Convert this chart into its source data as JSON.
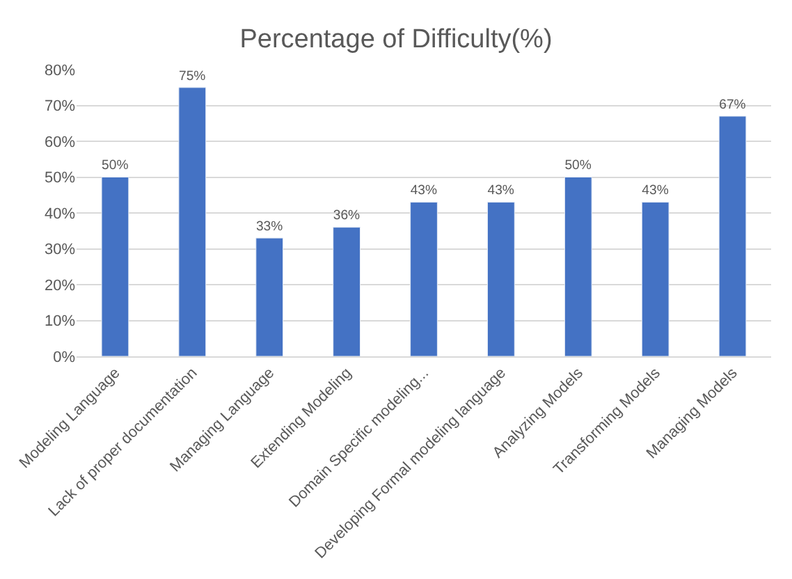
{
  "chart_data": {
    "type": "bar",
    "title": "Percentage of Difficulty(%)",
    "categories": [
      "Modeling Language",
      "Lack of proper documentation",
      "Managing Language",
      "Extending Modeling",
      "Domain Specific modeling...",
      "Developing Formal modeling language",
      "Analyzing Models",
      "Transforming Models",
      "Managing Models"
    ],
    "values": [
      50,
      75,
      33,
      36,
      43,
      43,
      50,
      43,
      67
    ],
    "value_labels": [
      "50%",
      "75%",
      "33%",
      "36%",
      "43%",
      "43%",
      "50%",
      "43%",
      "67%"
    ],
    "color": "#4472c4",
    "ylim": [
      0,
      80
    ],
    "yticks": [
      {
        "value": 0,
        "label": "0%"
      },
      {
        "value": 10,
        "label": "10%"
      },
      {
        "value": 20,
        "label": "20%"
      },
      {
        "value": 30,
        "label": "30%"
      },
      {
        "value": 40,
        "label": "40%"
      },
      {
        "value": 50,
        "label": "50%"
      },
      {
        "value": 60,
        "label": "60%"
      },
      {
        "value": 70,
        "label": "70%"
      },
      {
        "value": 80,
        "label": "80%"
      }
    ],
    "grid": "y",
    "legend": false
  }
}
